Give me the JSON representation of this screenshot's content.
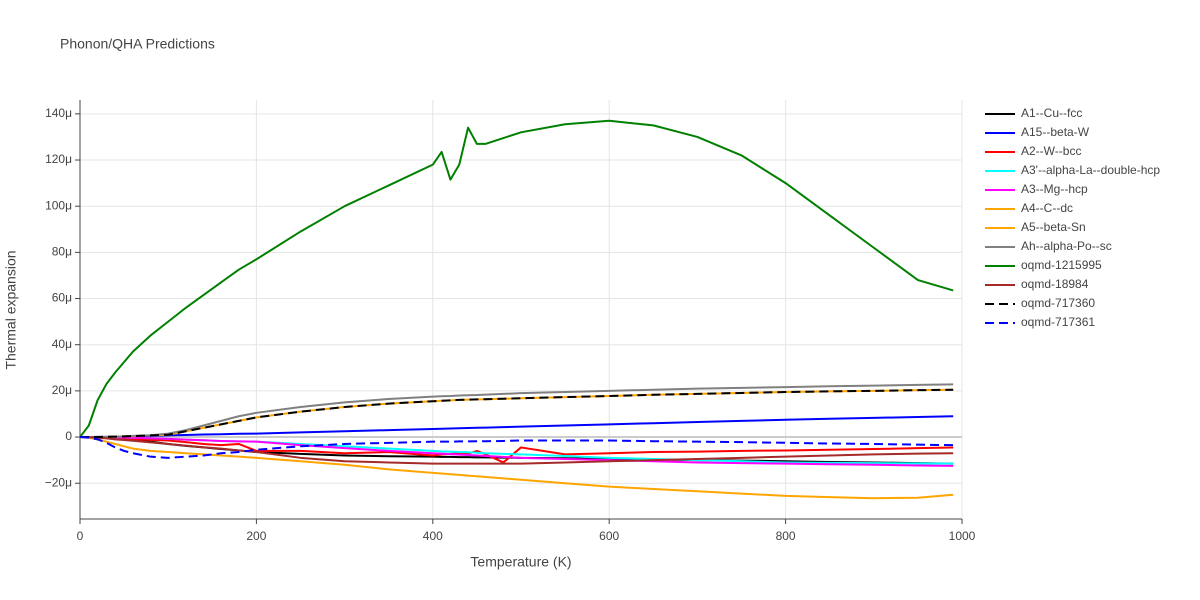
{
  "chart_data": {
    "type": "line",
    "title": "Phonon/QHA Predictions",
    "x_label": "Temperature (K)",
    "y_label": "Thermal expansion",
    "x": [
      0,
      10,
      20,
      30,
      40,
      50,
      60,
      80,
      100,
      120,
      140,
      160,
      180,
      200,
      250,
      300,
      350,
      400,
      410,
      420,
      430,
      440,
      450,
      460,
      480,
      500,
      550,
      600,
      650,
      700,
      750,
      800,
      850,
      900,
      950,
      990
    ],
    "xlim": [
      0,
      1000
    ],
    "xticks": [
      0,
      200,
      400,
      600,
      800,
      1000
    ],
    "ylim": [
      -35.5,
      146
    ],
    "yticks": [
      {
        "value": -20,
        "label": "−20μ"
      },
      0,
      {
        "value": 20,
        "label": "20μ"
      },
      {
        "value": 40,
        "label": "40μ"
      },
      {
        "value": 60,
        "label": "60μ"
      },
      {
        "value": 80,
        "label": "80μ"
      },
      {
        "value": 100,
        "label": "100μ"
      },
      {
        "value": 120,
        "label": "120μ"
      },
      {
        "value": 140,
        "label": "140μ"
      }
    ],
    "grid": true,
    "series": [
      {
        "name": "A1--Cu--fcc",
        "color": "#000000",
        "values": [
          0,
          0,
          -0.1,
          -0.3,
          -0.5,
          -0.8,
          -1.2,
          -2,
          -3,
          -3.8,
          -4.5,
          -5.2,
          -5.8,
          -6.5,
          -7.3,
          -8,
          -8.3,
          -8.5,
          -8.6,
          -8.6,
          -8.7,
          -8.7,
          -8.8,
          -8.8,
          -8.9,
          -9,
          -9.2,
          -9.5,
          -9.7,
          -10,
          -10.2,
          -10.5,
          -10.8,
          -11,
          -11.3,
          -11.5
        ]
      },
      {
        "name": "A15--beta-W",
        "color": "#0000ff",
        "values": [
          0,
          0.02,
          0.05,
          0.1,
          0.15,
          0.2,
          0.3,
          0.5,
          0.7,
          0.9,
          1.1,
          1.2,
          1.4,
          1.5,
          2,
          2.5,
          3,
          3.5,
          3.6,
          3.7,
          3.8,
          3.9,
          4,
          4.1,
          4.3,
          4.5,
          5,
          5.5,
          6,
          6.5,
          7,
          7.5,
          7.9,
          8.3,
          8.7,
          9
        ]
      },
      {
        "name": "A2--W--bcc",
        "color": "#ff0000",
        "values": [
          0,
          0,
          -0.1,
          -0.3,
          -0.5,
          -0.7,
          -0.9,
          -1.2,
          -1.5,
          -2.2,
          -3,
          -3.5,
          -3,
          -6,
          -6,
          -7,
          -6.5,
          -8,
          -7.5,
          -7.3,
          -7,
          -7.2,
          -6,
          -7.5,
          -11,
          -4.5,
          -7.5,
          -7,
          -6.5,
          -6.3,
          -6,
          -5.8,
          -5.5,
          -5.2,
          -4.8,
          -4.5
        ]
      },
      {
        "name": "A3'--alpha-La--double-hcp",
        "color": "#00ffff",
        "values": [
          0,
          0,
          0,
          -0.1,
          -0.1,
          -0.2,
          -0.3,
          -0.5,
          -0.8,
          -1.1,
          -1.4,
          -1.7,
          -1.9,
          -2,
          -3,
          -4,
          -5,
          -6,
          -6.2,
          -6.3,
          -6.5,
          -6.6,
          -6.8,
          -7,
          -7.3,
          -7.5,
          -8.2,
          -9,
          -9.5,
          -10,
          -10.5,
          -11,
          -11.2,
          -11.3,
          -11.4,
          -11.5
        ]
      },
      {
        "name": "A3--Mg--hcp",
        "color": "#ff00ff",
        "values": [
          0,
          0,
          0,
          -0.1,
          -0.1,
          -0.2,
          -0.3,
          -0.5,
          -0.8,
          -1.1,
          -1.4,
          -1.7,
          -1.9,
          -2,
          -3.5,
          -4.8,
          -6,
          -7,
          -7.2,
          -7.4,
          -7.6,
          -7.8,
          -8,
          -8.2,
          -8.6,
          -9,
          -9.5,
          -10,
          -10.5,
          -11,
          -11.3,
          -11.5,
          -11.8,
          -12,
          -12.3,
          -12.5
        ]
      },
      {
        "name": "A4--C--dc",
        "color": "#ffa500",
        "values": [
          0,
          -0.3,
          -1,
          -2,
          -3,
          -4,
          -5,
          -6,
          -6.5,
          -7,
          -7.5,
          -8,
          -8.5,
          -9,
          -10.5,
          -12,
          -14,
          -15.5,
          -15.8,
          -16.1,
          -16.4,
          -16.7,
          -17,
          -17.3,
          -17.9,
          -18.5,
          -20,
          -21.5,
          -22.5,
          -23.5,
          -24.5,
          -25.5,
          -26,
          -26.5,
          -26.3,
          -25
        ]
      },
      {
        "name": "A5--beta-Sn",
        "color": "#ffa500",
        "values": [
          0,
          0,
          0,
          0.1,
          0.2,
          0.3,
          0.4,
          0.7,
          1,
          2.5,
          4,
          5.5,
          7,
          8.5,
          11,
          13,
          14.5,
          15.5,
          15.7,
          15.9,
          16.1,
          16.2,
          16.3,
          16.4,
          16.6,
          16.8,
          17.3,
          17.8,
          18.3,
          18.7,
          19.1,
          19.5,
          19.8,
          20,
          20.3,
          20.5
        ]
      },
      {
        "name": "Ah--alpha-Po--sc",
        "color": "#808080",
        "values": [
          0,
          0,
          0,
          0.1,
          0.2,
          0.3,
          0.5,
          0.8,
          1.5,
          3,
          5,
          7,
          9,
          10.5,
          13,
          15,
          16.5,
          17.5,
          17.7,
          17.8,
          18,
          18.1,
          18.2,
          18.4,
          18.7,
          19,
          19.5,
          20,
          20.5,
          21,
          21.3,
          21.6,
          22,
          22.3,
          22.6,
          22.8
        ]
      },
      {
        "name": "oqmd-1215995",
        "color": "#008000",
        "values": [
          0,
          5,
          16,
          23,
          28,
          32.5,
          37,
          44,
          50,
          56,
          61.5,
          67,
          72.5,
          77,
          89,
          100,
          109,
          118,
          123.5,
          111.5,
          118,
          134,
          127,
          127,
          129.5,
          132,
          135.5,
          137,
          135,
          130,
          122,
          110,
          96,
          82,
          68,
          63.5
        ]
      },
      {
        "name": "oqmd-18984",
        "color": "#a52a2a",
        "values": [
          0,
          -0.1,
          -0.3,
          -0.6,
          -1,
          -1.3,
          -1.6,
          -2.3,
          -3,
          -3.7,
          -4.4,
          -5,
          -5.8,
          -6.5,
          -9,
          -10.5,
          -11,
          -11.5,
          -11.5,
          -11.5,
          -11.5,
          -11.5,
          -11.5,
          -11.5,
          -11.5,
          -11.5,
          -11,
          -10.5,
          -10,
          -9.5,
          -9,
          -8.5,
          -8,
          -7.5,
          -7.2,
          -7
        ]
      },
      {
        "name": "oqmd-717360",
        "color": "#000000",
        "dash": "dash",
        "values": [
          0,
          0,
          0,
          0.1,
          0.2,
          0.3,
          0.4,
          0.7,
          1,
          2.5,
          4,
          5.5,
          7,
          8.5,
          11,
          13,
          14.5,
          15.5,
          15.7,
          15.9,
          16.1,
          16.2,
          16.3,
          16.4,
          16.6,
          16.8,
          17.3,
          17.8,
          18.3,
          18.7,
          19.1,
          19.5,
          19.8,
          20,
          20.3,
          20.5
        ]
      },
      {
        "name": "oqmd-717361",
        "color": "#0000ff",
        "dash": "dash",
        "values": [
          0,
          -0.3,
          -1,
          -2.5,
          -4.5,
          -6,
          -7,
          -8.5,
          -9,
          -8.5,
          -8,
          -7,
          -6.5,
          -5.5,
          -4,
          -3,
          -2.5,
          -2,
          -2,
          -2,
          -1.9,
          -1.9,
          -1.8,
          -1.8,
          -1.7,
          -1.5,
          -1.5,
          -1.5,
          -1.8,
          -2,
          -2.2,
          -2.5,
          -2.8,
          -3,
          -3.3,
          -3.5
        ]
      }
    ]
  }
}
